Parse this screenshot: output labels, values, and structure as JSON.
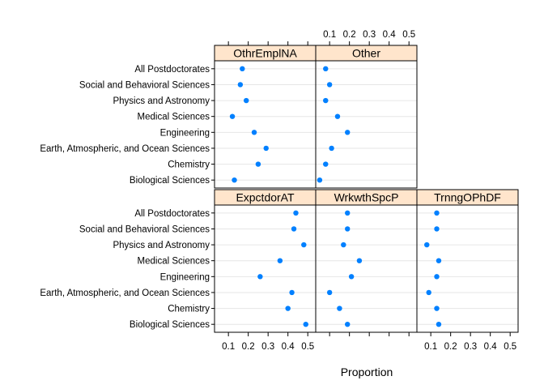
{
  "chart_data": {
    "type": "scatter",
    "xlabel": "Proportion",
    "ylabel": "",
    "xlim": [
      0.03,
      0.54
    ],
    "x_ticks": [
      0.1,
      0.2,
      0.3,
      0.4,
      0.5
    ],
    "x_tick_labels": [
      "0.1",
      "0.2",
      "0.3",
      "0.4",
      "0.5"
    ],
    "grid": true,
    "layout": {
      "columns": 3,
      "rows": 2
    },
    "categories": [
      "All Postdoctorates",
      "Social and Behavioral Sciences",
      "Physics and Astronomy",
      "Medical Sciences",
      "Engineering",
      "Earth, Atmospheric, and Ocean Sciences",
      "Chemistry",
      "Biological Sciences"
    ],
    "panels": [
      {
        "name": "ExpctdorAT",
        "row": "bottom",
        "col": 0,
        "values": [
          0.44,
          0.43,
          0.48,
          0.36,
          0.26,
          0.42,
          0.4,
          0.49
        ]
      },
      {
        "name": "WrkwthSpcP",
        "row": "bottom",
        "col": 1,
        "values": [
          0.19,
          0.19,
          0.17,
          0.25,
          0.21,
          0.1,
          0.15,
          0.19
        ]
      },
      {
        "name": "TrnngOPhDF",
        "row": "bottom",
        "col": 2,
        "values": [
          0.13,
          0.13,
          0.08,
          0.14,
          0.13,
          0.09,
          0.13,
          0.14
        ]
      },
      {
        "name": "OthrEmplNA",
        "row": "top",
        "col": 0,
        "values": [
          0.17,
          0.16,
          0.19,
          0.12,
          0.23,
          0.29,
          0.25,
          0.13
        ]
      },
      {
        "name": "Other",
        "row": "top",
        "col": 1,
        "values": [
          0.08,
          0.1,
          0.08,
          0.14,
          0.19,
          0.11,
          0.08,
          0.05
        ]
      }
    ],
    "colors": {
      "point": "#0080ff",
      "strip": "#ffe5cc"
    }
  }
}
